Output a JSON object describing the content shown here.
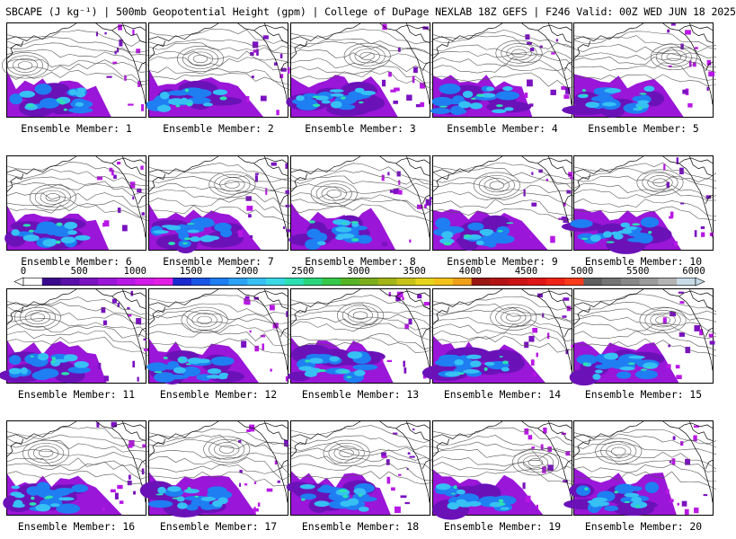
{
  "title": "SBCAPE (J kg⁻¹) | 500mb Geopotential Height (gpm) | College of DuPage NEXLAB 18Z GEFS | F246 Valid: 00Z WED JUN 18 2025",
  "members": [
    {
      "label": "Ensemble Member: 1",
      "lowLon": 0.13,
      "lowLat": 0.45
    },
    {
      "label": "Ensemble Member: 2",
      "lowLon": 0.37,
      "lowLat": 0.38
    },
    {
      "label": "Ensemble Member: 3",
      "lowLon": 0.55,
      "lowLat": 0.35
    },
    {
      "label": "Ensemble Member: 4",
      "lowLon": 0.62,
      "lowLat": 0.32
    },
    {
      "label": "Ensemble Member: 5",
      "lowLon": 0.72,
      "lowLat": 0.36
    },
    {
      "label": "Ensemble Member: 6",
      "lowLon": 0.33,
      "lowLat": 0.44
    },
    {
      "label": "Ensemble Member: 7",
      "lowLon": 0.6,
      "lowLat": 0.3
    },
    {
      "label": "Ensemble Member: 8",
      "lowLon": 0.31,
      "lowLat": 0.4
    },
    {
      "label": "Ensemble Member: 9",
      "lowLon": 0.46,
      "lowLat": 0.31
    },
    {
      "label": "Ensemble Member: 10",
      "lowLon": 0.62,
      "lowLat": 0.28
    },
    {
      "label": "Ensemble Member: 11",
      "lowLon": 0.22,
      "lowLat": 0.3
    },
    {
      "label": "Ensemble Member: 12",
      "lowLon": 0.4,
      "lowLat": 0.33
    },
    {
      "label": "Ensemble Member: 13",
      "lowLon": 0.5,
      "lowLat": 0.28
    },
    {
      "label": "Ensemble Member: 14",
      "lowLon": 0.58,
      "lowLat": 0.3
    },
    {
      "label": "Ensemble Member: 15",
      "lowLon": 0.64,
      "lowLat": 0.33
    },
    {
      "label": "Ensemble Member: 16",
      "lowLon": 0.28,
      "lowLat": 0.34
    },
    {
      "label": "Ensemble Member: 17",
      "lowLon": 0.56,
      "lowLat": 0.3
    },
    {
      "label": "Ensemble Member: 18",
      "lowLon": 0.4,
      "lowLat": 0.34
    },
    {
      "label": "Ensemble Member: 19",
      "lowLon": 0.74,
      "lowLat": 0.44
    },
    {
      "label": "Ensemble Member: 20",
      "lowLon": 0.32,
      "lowLat": 0.32
    }
  ],
  "colorbar": {
    "ticks": [
      "0",
      "500",
      "1000",
      "1500",
      "2000",
      "2500",
      "3000",
      "3500",
      "4000",
      "4500",
      "5000",
      "5500",
      "6000"
    ],
    "min": 0,
    "max": 6000,
    "colors": [
      "#ffffff",
      "#3a0a8c",
      "#5a0fa8",
      "#7a12c0",
      "#9a16d8",
      "#b818e6",
      "#d21be8",
      "#e21ee6",
      "#1a2ad0",
      "#1a56e6",
      "#1f7ef2",
      "#2aa2f6",
      "#36c0f4",
      "#3ad8e6",
      "#2de0b4",
      "#2ad67c",
      "#36c84a",
      "#56b426",
      "#7cae1e",
      "#a2b416",
      "#c8c218",
      "#e6d41a",
      "#f4c21a",
      "#f0a018",
      "#9a1812",
      "#b41414",
      "#cc1414",
      "#e01616",
      "#ee2418",
      "#fa3a1a",
      "#606060",
      "#747474",
      "#888888",
      "#9c9c9c",
      "#b4b4b4",
      "#c8dce8"
    ]
  }
}
